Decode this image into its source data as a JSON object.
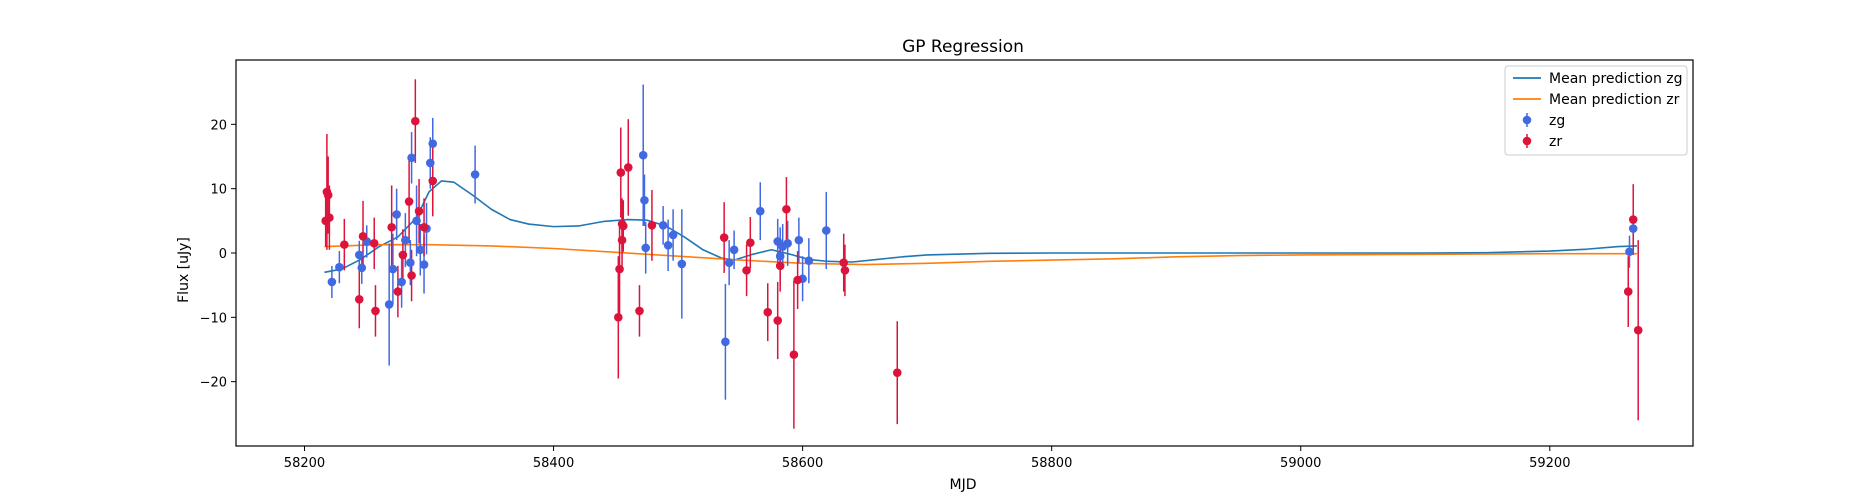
{
  "chart_data": {
    "type": "scatter",
    "title": "GP Regression",
    "xlabel": "MJD",
    "ylabel": "Flux [uJy]",
    "xlim": [
      58145,
      59315
    ],
    "ylim": [
      -30,
      30
    ],
    "xticks": [
      58200,
      58400,
      58600,
      58800,
      59000,
      59200
    ],
    "yticks": [
      -20,
      -10,
      0,
      10,
      20
    ],
    "xtick_labels": [
      "58200",
      "58400",
      "58600",
      "58800",
      "59000",
      "59200"
    ],
    "ytick_labels": [
      "−20",
      "−10",
      "0",
      "10",
      "20"
    ],
    "legend_position": "upper right",
    "grid": false,
    "legend": [
      {
        "label": "Mean prediction zg",
        "kind": "line",
        "color": "#1f77b4"
      },
      {
        "label": "Mean prediction zr",
        "kind": "line",
        "color": "#ff7f0e"
      },
      {
        "label": "zg",
        "kind": "errorbar",
        "color": "#4169e1"
      },
      {
        "label": "zr",
        "kind": "errorbar",
        "color": "#dc143c"
      }
    ],
    "lines": [
      {
        "name": "Mean prediction zg",
        "color": "#1f77b4",
        "points": [
          [
            58216,
            -3
          ],
          [
            58230,
            -2.5
          ],
          [
            58245,
            -1
          ],
          [
            58260,
            1
          ],
          [
            58275,
            2.5
          ],
          [
            58290,
            5.5
          ],
          [
            58300,
            9.5
          ],
          [
            58310,
            11.2
          ],
          [
            58320,
            11
          ],
          [
            58335,
            9
          ],
          [
            58350,
            6.8
          ],
          [
            58365,
            5.2
          ],
          [
            58380,
            4.5
          ],
          [
            58400,
            4.1
          ],
          [
            58420,
            4.2
          ],
          [
            58440,
            4.9
          ],
          [
            58460,
            5.2
          ],
          [
            58475,
            5.1
          ],
          [
            58490,
            4.2
          ],
          [
            58505,
            2.5
          ],
          [
            58520,
            0.5
          ],
          [
            58535,
            -0.8
          ],
          [
            58545,
            -1.1
          ],
          [
            58560,
            -0.2
          ],
          [
            58575,
            0.5
          ],
          [
            58590,
            -0.2
          ],
          [
            58605,
            -1
          ],
          [
            58620,
            -1.3
          ],
          [
            58640,
            -1.4
          ],
          [
            58660,
            -1
          ],
          [
            58680,
            -0.6
          ],
          [
            58700,
            -0.3
          ],
          [
            58750,
            -0.05
          ],
          [
            58800,
            0
          ],
          [
            58900,
            0
          ],
          [
            59000,
            0
          ],
          [
            59100,
            0
          ],
          [
            59150,
            0.05
          ],
          [
            59200,
            0.3
          ],
          [
            59230,
            0.6
          ],
          [
            59255,
            1
          ],
          [
            59270,
            1.1
          ]
        ]
      },
      {
        "name": "Mean prediction zr",
        "color": "#ff7f0e",
        "points": [
          [
            58216,
            1
          ],
          [
            58260,
            1.3
          ],
          [
            58300,
            1.3
          ],
          [
            58350,
            1.1
          ],
          [
            58400,
            0.7
          ],
          [
            58450,
            0.1
          ],
          [
            58500,
            -0.5
          ],
          [
            58550,
            -1.1
          ],
          [
            58600,
            -1.6
          ],
          [
            58650,
            -1.8
          ],
          [
            58700,
            -1.6
          ],
          [
            58750,
            -1.3
          ],
          [
            58800,
            -1.1
          ],
          [
            58850,
            -0.9
          ],
          [
            58900,
            -0.6
          ],
          [
            58950,
            -0.4
          ],
          [
            59000,
            -0.3
          ],
          [
            59100,
            -0.2
          ],
          [
            59200,
            -0.1
          ],
          [
            59270,
            -0.1
          ]
        ]
      }
    ],
    "series": [
      {
        "name": "zg",
        "color": "#4169e1",
        "points": [
          {
            "x": 58222,
            "y": -4.5,
            "err": 2.5
          },
          {
            "x": 58228,
            "y": -2.2,
            "err": 2.5
          },
          {
            "x": 58244,
            "y": -0.3,
            "err": 2.2
          },
          {
            "x": 58246,
            "y": -2.3,
            "err": 2.5
          },
          {
            "x": 58250,
            "y": 1.8,
            "err": 2.5
          },
          {
            "x": 58268,
            "y": -8,
            "err": 9.5
          },
          {
            "x": 58271,
            "y": -2.5,
            "err": 5.5
          },
          {
            "x": 58274,
            "y": 6,
            "err": 4
          },
          {
            "x": 58278,
            "y": -4.5,
            "err": 4
          },
          {
            "x": 58281,
            "y": 2,
            "err": 4.2
          },
          {
            "x": 58285,
            "y": -1.5,
            "err": 3.5
          },
          {
            "x": 58286,
            "y": 14.8,
            "err": 4
          },
          {
            "x": 58290,
            "y": 5,
            "err": 5.5
          },
          {
            "x": 58293,
            "y": 0.5,
            "err": 4
          },
          {
            "x": 58296,
            "y": -1.8,
            "err": 4.5
          },
          {
            "x": 58298,
            "y": 3.8,
            "err": 4
          },
          {
            "x": 58301,
            "y": 14,
            "err": 4
          },
          {
            "x": 58303,
            "y": 17,
            "err": 4
          },
          {
            "x": 58337,
            "y": 12.2,
            "err": 4.5
          },
          {
            "x": 58472,
            "y": 15.2,
            "err": 11
          },
          {
            "x": 58473,
            "y": 8.2,
            "err": 4
          },
          {
            "x": 58474,
            "y": 0.8,
            "err": 4
          },
          {
            "x": 58488,
            "y": 4.3,
            "err": 3
          },
          {
            "x": 58492,
            "y": 1.2,
            "err": 4
          },
          {
            "x": 58496,
            "y": 2.8,
            "err": 4
          },
          {
            "x": 58503,
            "y": -1.7,
            "err": 8.5
          },
          {
            "x": 58538,
            "y": -13.8,
            "err": 9
          },
          {
            "x": 58541,
            "y": -1.5,
            "err": 3.5
          },
          {
            "x": 58545,
            "y": 0.5,
            "err": 3
          },
          {
            "x": 58566,
            "y": 6.5,
            "err": 4.5
          },
          {
            "x": 58580,
            "y": 1.8,
            "err": 3.5
          },
          {
            "x": 58582,
            "y": -0.5,
            "err": 4.5
          },
          {
            "x": 58584,
            "y": 1,
            "err": 3.5
          },
          {
            "x": 58588,
            "y": 1.5,
            "err": 3.5
          },
          {
            "x": 58597,
            "y": 2,
            "err": 3.5
          },
          {
            "x": 58600,
            "y": -4,
            "err": 3.5
          },
          {
            "x": 58605,
            "y": -1.2,
            "err": 3.5
          },
          {
            "x": 58619,
            "y": 3.5,
            "err": 6
          },
          {
            "x": 59264,
            "y": 0.2,
            "err": 2.5
          },
          {
            "x": 59267,
            "y": 3.8,
            "err": 2
          }
        ]
      },
      {
        "name": "zr",
        "color": "#dc143c",
        "points": [
          {
            "x": 58217,
            "y": 5,
            "err": 4
          },
          {
            "x": 58218,
            "y": 9.5,
            "err": 9
          },
          {
            "x": 58219,
            "y": 9,
            "err": 6
          },
          {
            "x": 58220,
            "y": 5.5,
            "err": 5
          },
          {
            "x": 58232,
            "y": 1.3,
            "err": 4
          },
          {
            "x": 58244,
            "y": -7.2,
            "err": 4.5
          },
          {
            "x": 58247,
            "y": 2.6,
            "err": 5.5
          },
          {
            "x": 58256,
            "y": 1.5,
            "err": 4
          },
          {
            "x": 58257,
            "y": -9,
            "err": 4
          },
          {
            "x": 58270,
            "y": 4,
            "err": 6.5
          },
          {
            "x": 58275,
            "y": -6,
            "err": 4
          },
          {
            "x": 58279,
            "y": -0.3,
            "err": 4
          },
          {
            "x": 58284,
            "y": 8,
            "err": 6.5
          },
          {
            "x": 58286,
            "y": -3.5,
            "err": 4
          },
          {
            "x": 58289,
            "y": 20.5,
            "err": 6.5
          },
          {
            "x": 58292,
            "y": 6.5,
            "err": 5
          },
          {
            "x": 58296,
            "y": 4,
            "err": 4.5
          },
          {
            "x": 58303,
            "y": 11.2,
            "err": 5.5
          },
          {
            "x": 58452,
            "y": -10,
            "err": 9.5
          },
          {
            "x": 58453,
            "y": -2.5,
            "err": 7
          },
          {
            "x": 58454,
            "y": 12.5,
            "err": 7
          },
          {
            "x": 58455,
            "y": 4.5,
            "err": 4
          },
          {
            "x": 58455,
            "y": 2,
            "err": 4
          },
          {
            "x": 58456,
            "y": 4.2,
            "err": 4
          },
          {
            "x": 58460,
            "y": 13.3,
            "err": 7.5
          },
          {
            "x": 58469,
            "y": -9,
            "err": 4
          },
          {
            "x": 58479,
            "y": 4.3,
            "err": 5.5
          },
          {
            "x": 58537,
            "y": 2.4,
            "err": 5.5
          },
          {
            "x": 58555,
            "y": -2.7,
            "err": 4
          },
          {
            "x": 58558,
            "y": 1.6,
            "err": 4
          },
          {
            "x": 58572,
            "y": -9.2,
            "err": 4.5
          },
          {
            "x": 58580,
            "y": -10.5,
            "err": 6
          },
          {
            "x": 58582,
            "y": -2,
            "err": 4
          },
          {
            "x": 58587,
            "y": 6.8,
            "err": 5
          },
          {
            "x": 58593,
            "y": -15.8,
            "err": 11.5
          },
          {
            "x": 58596,
            "y": -4.2,
            "err": 4.5
          },
          {
            "x": 58633,
            "y": -1.5,
            "err": 4.5
          },
          {
            "x": 58634,
            "y": -2.7,
            "err": 4
          },
          {
            "x": 58676,
            "y": -18.6,
            "err": 8
          },
          {
            "x": 59263,
            "y": -6,
            "err": 5.5
          },
          {
            "x": 59267,
            "y": 5.2,
            "err": 5.5
          },
          {
            "x": 59271,
            "y": -12,
            "err": 14
          }
        ]
      }
    ]
  }
}
